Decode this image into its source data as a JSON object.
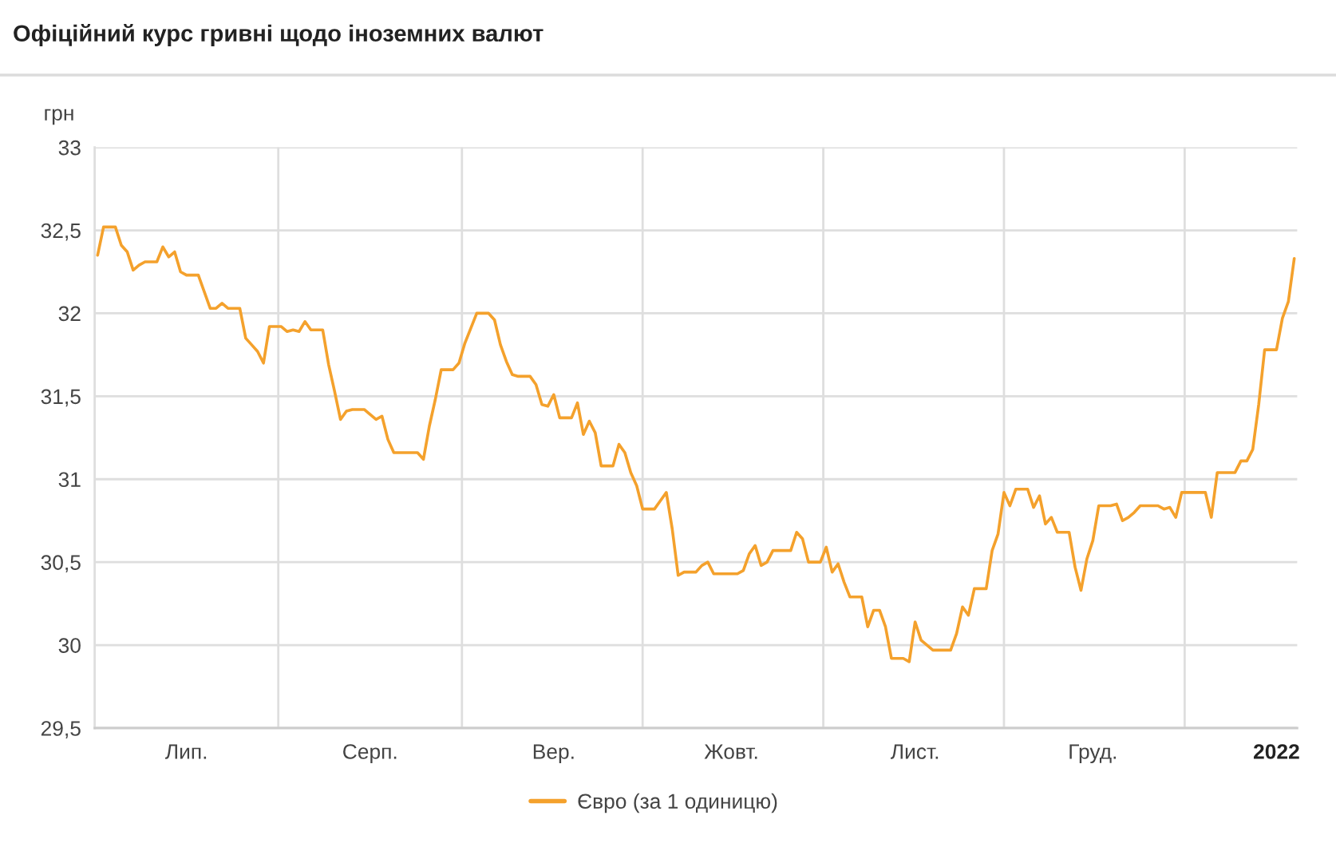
{
  "chart_data": {
    "type": "line",
    "title": "Офіційний курс гривні щодо іноземних валют",
    "ylabel": "грн",
    "categories": [
      null,
      null,
      null,
      null,
      null,
      null,
      null,
      null,
      null,
      null,
      null,
      null,
      null,
      null,
      null,
      "Лип.",
      null,
      null,
      null,
      null,
      null,
      null,
      null,
      null,
      null,
      null,
      null,
      null,
      null,
      null,
      null,
      null,
      null,
      null,
      null,
      null,
      null,
      null,
      null,
      null,
      null,
      null,
      null,
      null,
      null,
      null,
      "Серп.",
      null,
      null,
      null,
      null,
      null,
      null,
      null,
      null,
      null,
      null,
      null,
      null,
      null,
      null,
      null,
      null,
      null,
      null,
      null,
      null,
      null,
      null,
      null,
      null,
      null,
      null,
      null,
      null,
      null,
      null,
      "Вер.",
      null,
      null,
      null,
      null,
      null,
      null,
      null,
      null,
      null,
      null,
      null,
      null,
      null,
      null,
      null,
      null,
      null,
      null,
      null,
      null,
      null,
      null,
      null,
      null,
      null,
      null,
      null,
      null,
      null,
      "Жовт.",
      null,
      null,
      null,
      null,
      null,
      null,
      null,
      null,
      null,
      null,
      null,
      null,
      null,
      null,
      null,
      null,
      null,
      null,
      null,
      null,
      null,
      null,
      null,
      null,
      null,
      null,
      null,
      null,
      null,
      null,
      "Лист.",
      null,
      null,
      null,
      null,
      null,
      null,
      null,
      null,
      null,
      null,
      null,
      null,
      null,
      null,
      null,
      null,
      null,
      null,
      null,
      null,
      null,
      null,
      null,
      null,
      null,
      null,
      null,
      null,
      null,
      "Груд.",
      null,
      null,
      null,
      null,
      null,
      null,
      null,
      null,
      null,
      null,
      null,
      null,
      null,
      null,
      null,
      null,
      null,
      null,
      null,
      null,
      null,
      null,
      null,
      null,
      null,
      null,
      null,
      null,
      null,
      null,
      "2022",
      null,
      null,
      null
    ],
    "series": [
      {
        "name": "Євро (за 1 одиницю)",
        "color": "#f4a12c",
        "values": [
          32.35,
          32.52,
          32.52,
          32.52,
          32.41,
          32.37,
          32.26,
          32.29,
          32.31,
          32.31,
          32.31,
          32.4,
          32.34,
          32.37,
          32.25,
          32.23,
          32.23,
          32.23,
          32.13,
          32.03,
          32.03,
          32.06,
          32.03,
          32.03,
          32.03,
          31.85,
          31.81,
          31.77,
          31.7,
          31.92,
          31.92,
          31.92,
          31.89,
          31.9,
          31.89,
          31.95,
          31.9,
          31.9,
          31.9,
          31.69,
          31.53,
          31.36,
          31.41,
          31.42,
          31.42,
          31.42,
          31.39,
          31.36,
          31.38,
          31.24,
          31.16,
          31.16,
          31.16,
          31.16,
          31.16,
          31.12,
          31.32,
          31.48,
          31.66,
          31.66,
          31.66,
          31.7,
          31.82,
          31.91,
          32.0,
          32.0,
          32.0,
          31.96,
          31.81,
          31.71,
          31.63,
          31.62,
          31.62,
          31.62,
          31.57,
          31.45,
          31.44,
          31.51,
          31.37,
          31.37,
          31.37,
          31.46,
          31.27,
          31.35,
          31.28,
          31.08,
          31.08,
          31.08,
          31.21,
          31.16,
          31.04,
          30.96,
          30.82,
          30.82,
          30.82,
          30.87,
          30.92,
          30.7,
          30.42,
          30.44,
          30.44,
          30.44,
          30.48,
          30.5,
          30.43,
          30.43,
          30.43,
          30.43,
          30.43,
          30.45,
          30.55,
          30.6,
          30.48,
          30.5,
          30.57,
          30.57,
          30.57,
          30.57,
          30.68,
          30.64,
          30.5,
          30.5,
          30.5,
          30.59,
          30.44,
          30.49,
          30.38,
          30.29,
          30.29,
          30.29,
          30.11,
          30.21,
          30.21,
          30.11,
          29.92,
          29.92,
          29.92,
          29.9,
          30.14,
          30.03,
          30.0,
          29.97,
          29.97,
          29.97,
          29.97,
          30.07,
          30.23,
          30.18,
          30.34,
          30.34,
          30.34,
          30.57,
          30.67,
          30.92,
          30.84,
          30.94,
          30.94,
          30.94,
          30.83,
          30.9,
          30.73,
          30.77,
          30.68,
          30.68,
          30.68,
          30.47,
          30.33,
          30.52,
          30.63,
          30.84,
          30.84,
          30.84,
          30.85,
          30.75,
          30.77,
          30.8,
          30.84,
          30.84,
          30.84,
          30.84,
          30.82,
          30.83,
          30.77,
          30.92,
          30.92,
          30.92,
          30.92,
          30.92,
          30.77,
          31.04,
          31.04,
          31.04,
          31.04,
          31.11,
          31.11,
          31.18,
          31.45,
          31.78,
          31.78,
          31.78,
          31.97,
          32.07,
          32.33
        ]
      }
    ],
    "ylim": [
      29.5,
      33
    ],
    "yticks": [
      {
        "value": 29.5,
        "label": "29,5"
      },
      30,
      {
        "value": 30.5,
        "label": "30,5"
      },
      31,
      {
        "value": 31.5,
        "label": "31,5"
      },
      32,
      {
        "value": 32.5,
        "label": "32,5"
      },
      33
    ],
    "grid": true,
    "legend": "bottom"
  }
}
